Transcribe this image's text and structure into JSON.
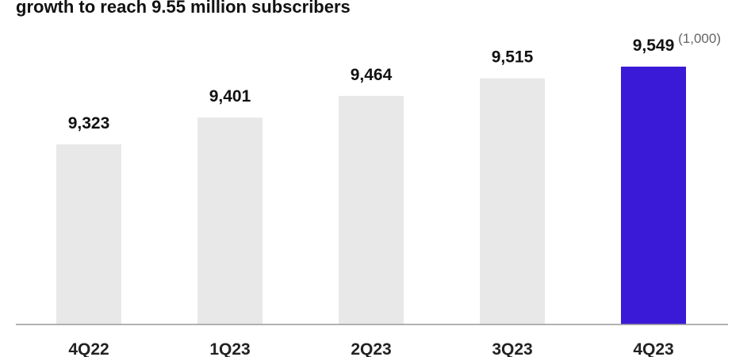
{
  "headline": "growth to reach 9.55 million subscribers",
  "unit_label": "(1,000)",
  "colors": {
    "bar_default": "#e8e8e8",
    "bar_highlight": "#3a1ad6",
    "baseline": "#999999"
  },
  "chart_data": {
    "type": "bar",
    "categories": [
      "4Q22",
      "1Q23",
      "2Q23",
      "3Q23",
      "4Q23"
    ],
    "values": [
      9323,
      9401,
      9464,
      9515,
      9549
    ],
    "value_labels": [
      "9,323",
      "9,401",
      "9,464",
      "9,515",
      "9,549"
    ],
    "highlight_index": 4,
    "title": "",
    "xlabel": "",
    "ylabel": "",
    "grid": false,
    "legend": "none"
  }
}
